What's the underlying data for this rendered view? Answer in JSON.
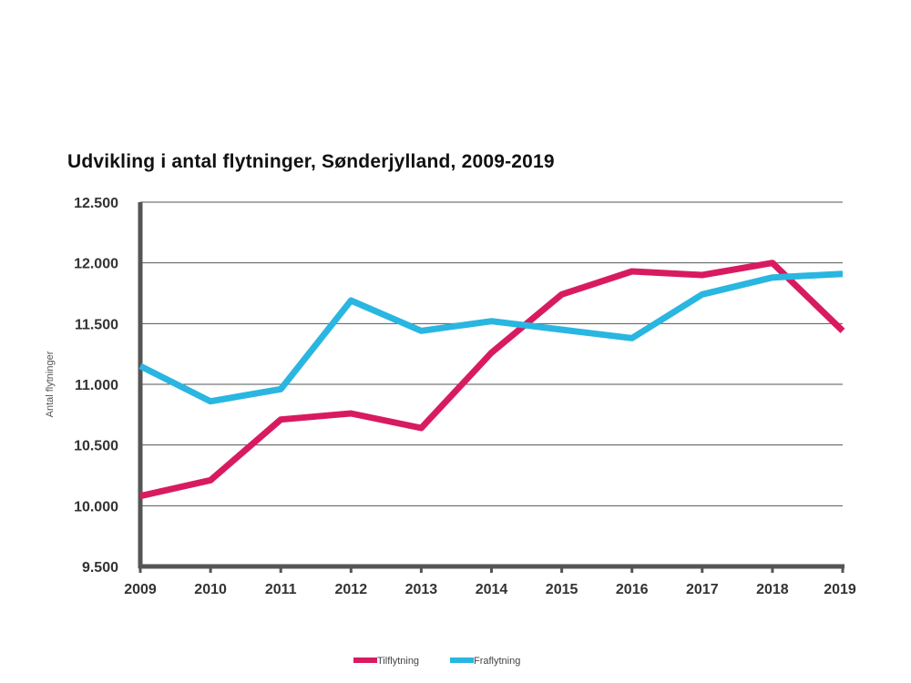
{
  "chart_data": {
    "type": "line",
    "title": "Udvikling i antal flytninger, Sønderjylland, 2009-2019",
    "xlabel": "",
    "ylabel": "Antal flytninger",
    "x": [
      "2009",
      "2010",
      "2011",
      "2012",
      "2013",
      "2014",
      "2015",
      "2016",
      "2017",
      "2018",
      "2019"
    ],
    "ylim": [
      9500,
      12500
    ],
    "yticks": [
      9500,
      10000,
      10500,
      11000,
      11500,
      12000,
      12500
    ],
    "ytick_labels": [
      "9.500",
      "10.000",
      "10.500",
      "11.000",
      "11.500",
      "12.000",
      "12.500"
    ],
    "grid": "horizontal",
    "legend_position": "bottom-center",
    "series": [
      {
        "name": "Tilflytning",
        "color": "#d81b60",
        "values": [
          10080,
          10210,
          10710,
          10760,
          10640,
          11260,
          11740,
          11930,
          11900,
          12000,
          11440
        ]
      },
      {
        "name": "Fraflytning",
        "color": "#29b6e0",
        "values": [
          11150,
          10860,
          10960,
          11690,
          11440,
          11520,
          11450,
          11380,
          11740,
          11880,
          11910
        ]
      }
    ]
  }
}
